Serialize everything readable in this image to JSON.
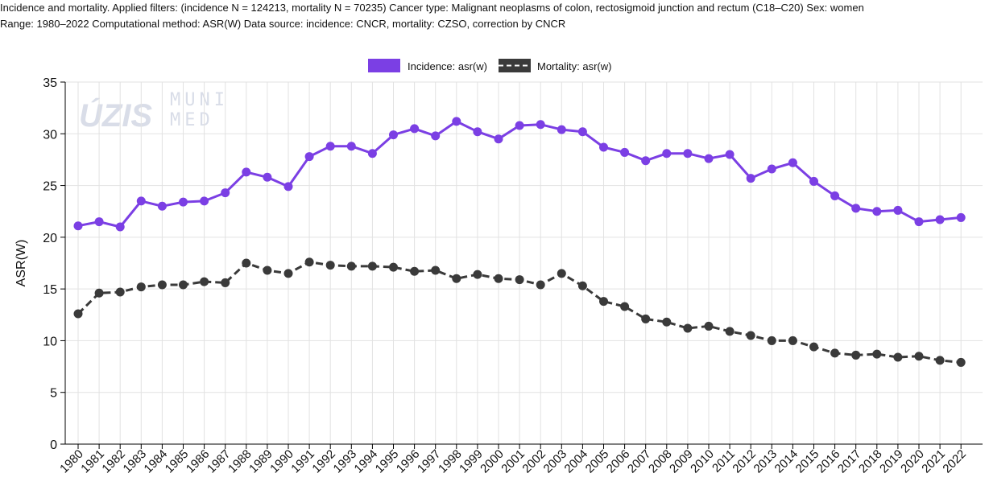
{
  "header": {
    "line1": "Incidence and mortality. Applied filters: (incidence N = 124213, mortality N = 70235) Cancer type: Malignant neoplasms of colon, rectosigmoid junction and rectum (C18–C20) Sex: women",
    "line2": "Range: 1980–2022 Computational method: ASR(W) Data source: incidence: CNCR, mortality: CZSO, correction by CNCR"
  },
  "watermark": {
    "uzis": "ÚZIS",
    "muni_line1": "MUNI",
    "muni_line2": "MED"
  },
  "colors": {
    "incidence": "#7b3fe4",
    "mortality": "#3a3a3a",
    "grid": "#e2e2e2",
    "axis": "#000000",
    "watermark": "#d9dde8"
  },
  "chart_data": {
    "type": "line",
    "title": "",
    "xlabel": "",
    "ylabel": "ASR(W)",
    "ylim": [
      0,
      35
    ],
    "yticks": [
      0,
      5,
      10,
      15,
      20,
      25,
      30,
      35
    ],
    "grid": true,
    "legend_position": "top-center",
    "x": [
      "1980",
      "1981",
      "1982",
      "1983",
      "1984",
      "1985",
      "1986",
      "1987",
      "1988",
      "1989",
      "1990",
      "1991",
      "1992",
      "1993",
      "1994",
      "1995",
      "1996",
      "1997",
      "1998",
      "1999",
      "2000",
      "2001",
      "2002",
      "2003",
      "2004",
      "2005",
      "2006",
      "2007",
      "2008",
      "2009",
      "2010",
      "2011",
      "2012",
      "2013",
      "2014",
      "2015",
      "2016",
      "2017",
      "2018",
      "2019",
      "2020",
      "2021",
      "2022"
    ],
    "series": [
      {
        "name": "Incidence: asr(w)",
        "style": "solid",
        "color": "#7b3fe4",
        "values": [
          21.1,
          21.5,
          21.0,
          23.5,
          23.0,
          23.4,
          23.5,
          24.3,
          26.3,
          25.8,
          24.9,
          27.8,
          28.8,
          28.8,
          28.1,
          29.9,
          30.5,
          29.8,
          31.2,
          30.2,
          29.5,
          30.8,
          30.9,
          30.4,
          30.2,
          28.7,
          28.2,
          27.4,
          28.1,
          28.1,
          27.6,
          28.0,
          25.7,
          26.6,
          27.2,
          25.4,
          24.0,
          22.8,
          22.5,
          22.6,
          21.5,
          21.7,
          21.9
        ]
      },
      {
        "name": "Mortality: asr(w)",
        "style": "dashed",
        "color": "#3a3a3a",
        "values": [
          12.6,
          14.6,
          14.7,
          15.2,
          15.4,
          15.4,
          15.7,
          15.6,
          17.5,
          16.8,
          16.5,
          17.6,
          17.3,
          17.2,
          17.2,
          17.1,
          16.7,
          16.8,
          16.0,
          16.4,
          16.0,
          15.9,
          15.4,
          16.5,
          15.3,
          13.8,
          13.3,
          12.1,
          11.8,
          11.2,
          11.4,
          10.9,
          10.5,
          10.0,
          10.0,
          9.4,
          8.8,
          8.6,
          8.7,
          8.4,
          8.5,
          8.1,
          7.9
        ]
      }
    ]
  }
}
